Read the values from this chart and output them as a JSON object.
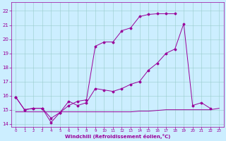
{
  "background_color": "#cceeff",
  "line_color": "#990099",
  "grid_color": "#99cccc",
  "xlabel": "Windchill (Refroidissement éolien,°C)",
  "xlabel_color": "#990099",
  "xlim": [
    -0.5,
    23.5
  ],
  "ylim": [
    13.8,
    22.6
  ],
  "yticks": [
    14,
    15,
    16,
    17,
    18,
    19,
    20,
    21,
    22
  ],
  "xticks": [
    0,
    1,
    2,
    3,
    4,
    5,
    6,
    7,
    8,
    9,
    10,
    11,
    12,
    13,
    14,
    15,
    16,
    17,
    18,
    19,
    20,
    21,
    22,
    23
  ],
  "line1_x": [
    0,
    1,
    2,
    3,
    4,
    5,
    6,
    7,
    8,
    9,
    10,
    11,
    12,
    13,
    14,
    15,
    16,
    17,
    18,
    19,
    20,
    21,
    22
  ],
  "line1_y": [
    15.9,
    15.0,
    15.1,
    15.1,
    14.4,
    14.8,
    15.6,
    15.3,
    15.5,
    16.5,
    16.4,
    16.3,
    16.5,
    16.8,
    17.0,
    17.8,
    18.3,
    19.0,
    19.3,
    21.1,
    15.3,
    15.5,
    15.1
  ],
  "line2_x": [
    0,
    1,
    2,
    3,
    4,
    5,
    6,
    7,
    8,
    9,
    10,
    11,
    12,
    13,
    14,
    15,
    16,
    17,
    18
  ],
  "line2_y": [
    15.9,
    15.0,
    15.1,
    15.1,
    14.1,
    14.8,
    15.3,
    15.6,
    15.7,
    19.5,
    19.8,
    19.8,
    20.6,
    20.8,
    21.6,
    21.75,
    21.8,
    21.8,
    21.8
  ],
  "line3_x": [
    0,
    1,
    2,
    3,
    4,
    5,
    6,
    7,
    8,
    9,
    10,
    11,
    12,
    13,
    14,
    15,
    16,
    17,
    18,
    19,
    20,
    21,
    22,
    23
  ],
  "line3_y": [
    14.85,
    14.85,
    14.85,
    14.85,
    14.85,
    14.85,
    14.85,
    14.85,
    14.85,
    14.85,
    14.85,
    14.85,
    14.85,
    14.85,
    14.9,
    14.9,
    14.95,
    15.0,
    15.0,
    15.0,
    15.0,
    15.0,
    15.0,
    15.1
  ]
}
